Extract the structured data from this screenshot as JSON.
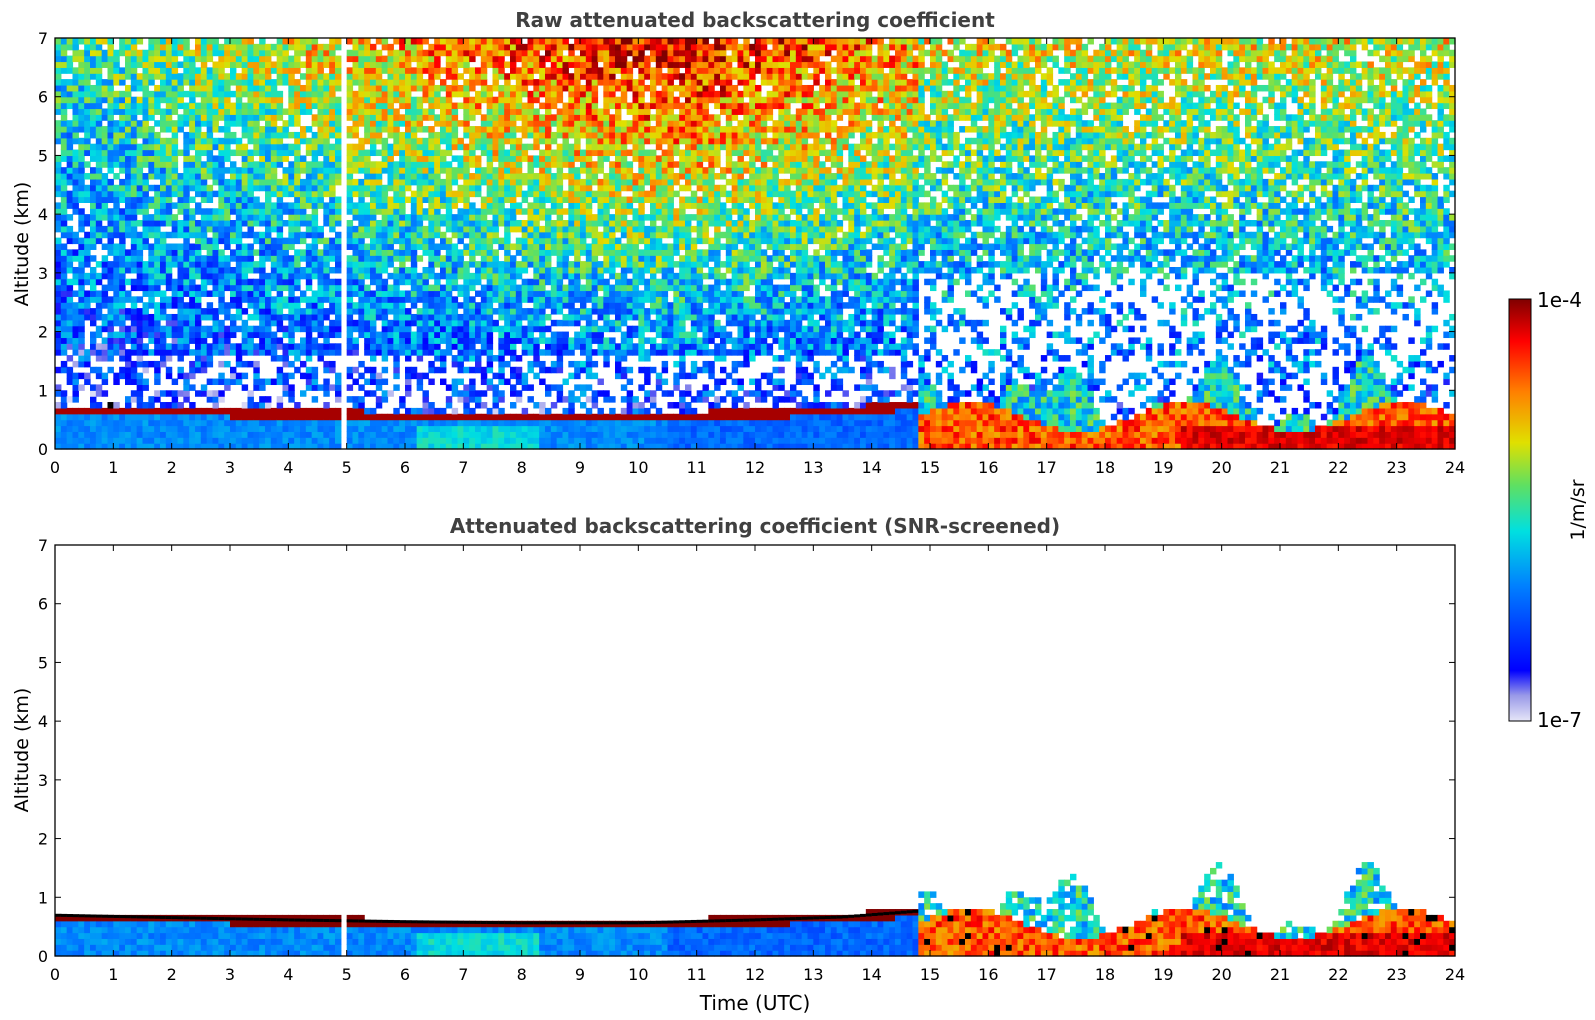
{
  "chart_data": [
    {
      "type": "heatmap",
      "title": "Raw attenuated backscattering coefficient",
      "xlabel": "",
      "ylabel": "Altitude (km)",
      "xlim": [
        0,
        24
      ],
      "ylim": [
        0,
        7
      ],
      "xticks": [
        "0",
        "1",
        "2",
        "3",
        "4",
        "5",
        "6",
        "7",
        "8",
        "9",
        "10",
        "11",
        "12",
        "13",
        "14",
        "15",
        "16",
        "17",
        "18",
        "19",
        "20",
        "21",
        "22",
        "23",
        "24"
      ],
      "yticks": [
        "0",
        "1",
        "2",
        "3",
        "4",
        "5",
        "6",
        "7"
      ],
      "features": {
        "boundary_layer_top_km": [
          {
            "t": 0,
            "alt": 0.68
          },
          {
            "t": 2,
            "alt": 0.64
          },
          {
            "t": 4,
            "alt": 0.6
          },
          {
            "t": 6,
            "alt": 0.57
          },
          {
            "t": 8,
            "alt": 0.55
          },
          {
            "t": 10,
            "alt": 0.55
          },
          {
            "t": 12,
            "alt": 0.6
          },
          {
            "t": 13.5,
            "alt": 0.65
          },
          {
            "t": 14.8,
            "alt": 0.75
          }
        ],
        "data_gap_hour": 4.95,
        "convective_regime_start_hour": 14.8
      }
    },
    {
      "type": "heatmap",
      "title": "Attenuated backscattering coefficient (SNR-screened)",
      "xlabel": "Time (UTC)",
      "ylabel": "Altitude (km)",
      "xlim": [
        0,
        24
      ],
      "ylim": [
        0,
        7
      ],
      "xticks": [
        "0",
        "1",
        "2",
        "3",
        "4",
        "5",
        "6",
        "7",
        "8",
        "9",
        "10",
        "11",
        "12",
        "13",
        "14",
        "15",
        "16",
        "17",
        "18",
        "19",
        "20",
        "21",
        "22",
        "23",
        "24"
      ],
      "yticks": [
        "0",
        "1",
        "2",
        "3",
        "4",
        "5",
        "6",
        "7"
      ],
      "features": {
        "data_gap_hour": 4.95,
        "convective_regime_start_hour": 14.8
      }
    }
  ],
  "colorbar": {
    "max_label": "1e-4",
    "min_label": "1e-7",
    "unit_label": "1/m/sr",
    "scale": "log"
  }
}
